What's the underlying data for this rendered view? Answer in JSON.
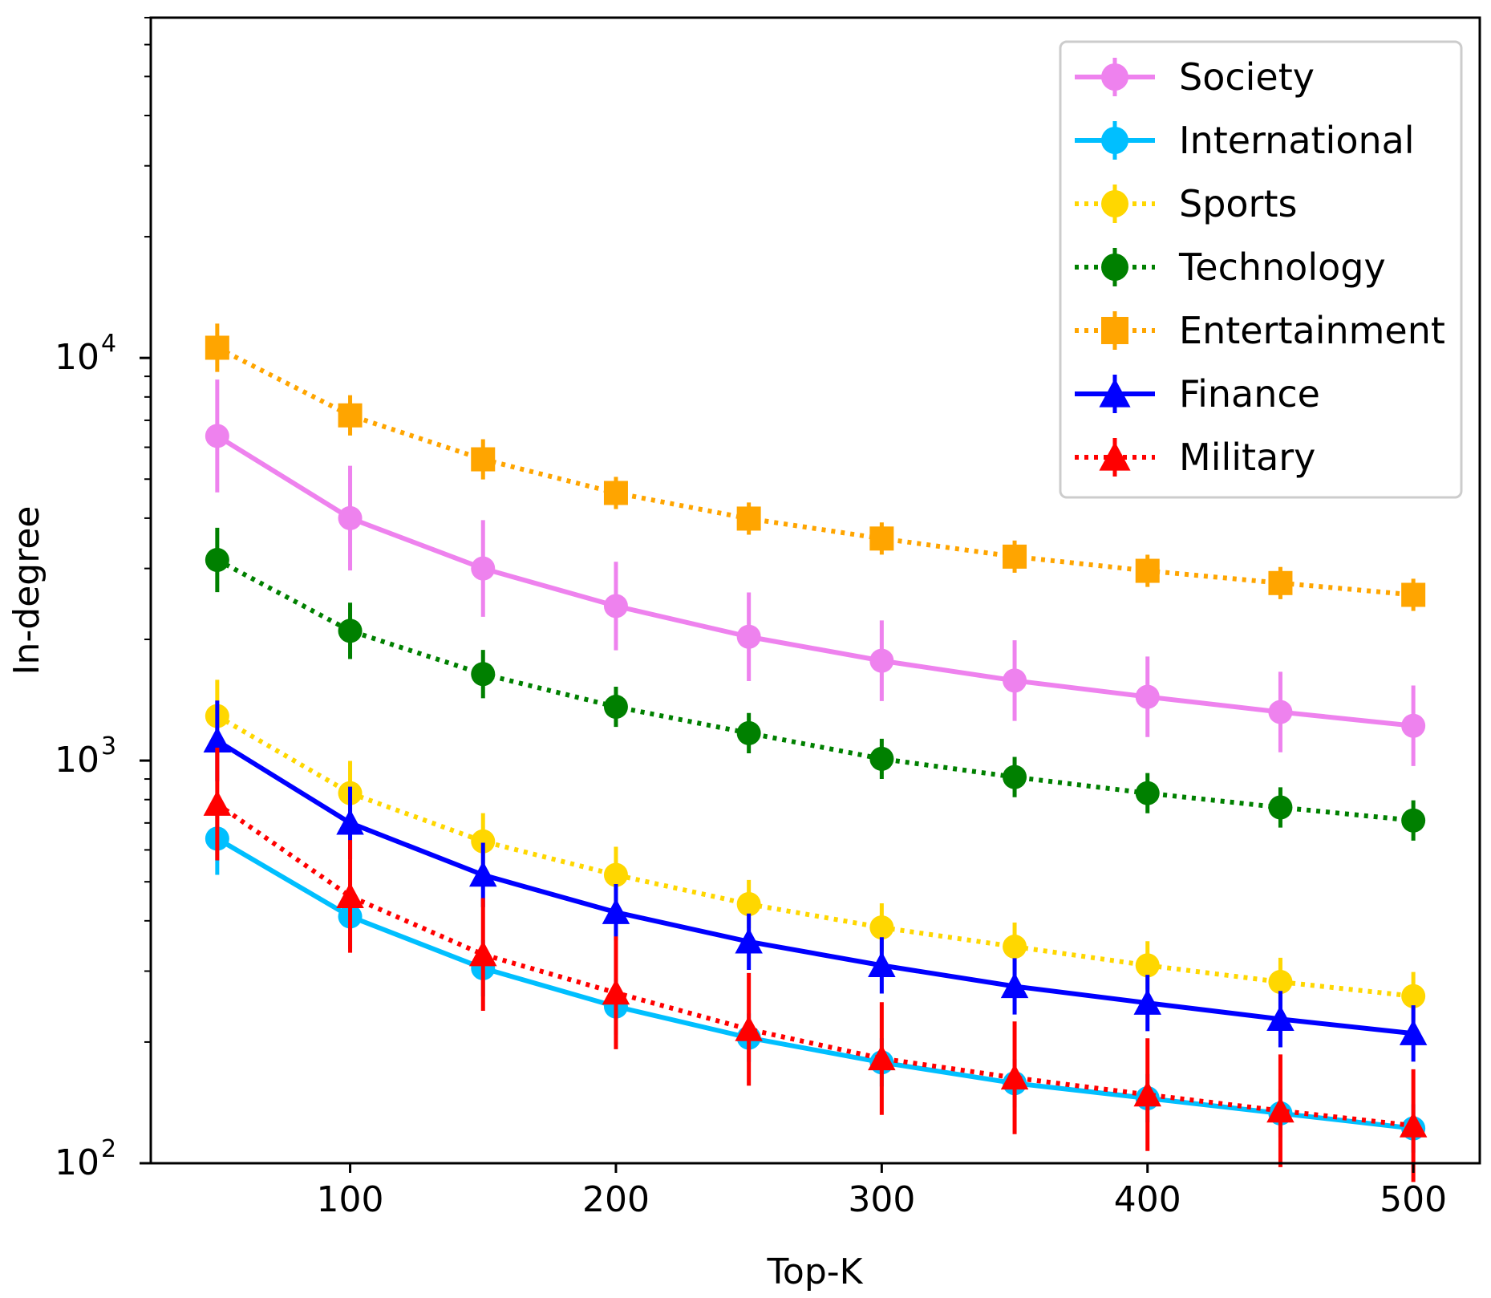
{
  "chart_data": {
    "type": "line",
    "title": "",
    "xlabel": "Top-K",
    "ylabel": "In-degree",
    "yscale": "log",
    "xlim": [
      25,
      525
    ],
    "ylim": [
      100,
      70000
    ],
    "x": [
      50,
      100,
      150,
      200,
      250,
      300,
      350,
      400,
      450,
      500
    ],
    "xticks": [
      100,
      200,
      300,
      400,
      500
    ],
    "xtick_labels": [
      "100",
      "200",
      "300",
      "400",
      "500"
    ],
    "yticks": [
      {
        "value": 100,
        "base": "10",
        "exp": "2"
      },
      {
        "value": 1000,
        "base": "10",
        "exp": "3"
      },
      {
        "value": 10000,
        "base": "10",
        "exp": "4"
      }
    ],
    "legend_position": "top-right",
    "series": [
      {
        "name": "Society",
        "color": "#ee82ee",
        "style": "solid",
        "marker": "circle",
        "values": [
          6400,
          4000,
          3000,
          2420,
          2030,
          1770,
          1580,
          1440,
          1320,
          1220
        ],
        "err": [
          0.14,
          0.13,
          0.12,
          0.11,
          0.11,
          0.1,
          0.1,
          0.1,
          0.1,
          0.1
        ]
      },
      {
        "name": "International",
        "color": "#00bfff",
        "style": "solid",
        "marker": "circle",
        "values": [
          640,
          410,
          305,
          245,
          205,
          178,
          158,
          145,
          133,
          122
        ],
        "err": [
          0.09,
          0.08,
          0.07,
          0.07,
          0.06,
          0.06,
          0.06,
          0.06,
          0.06,
          0.06
        ]
      },
      {
        "name": "Sports",
        "color": "#ffd700",
        "style": "dotted",
        "marker": "circle",
        "values": [
          1290,
          830,
          630,
          520,
          440,
          385,
          345,
          310,
          282,
          260
        ],
        "err": [
          0.09,
          0.08,
          0.07,
          0.07,
          0.06,
          0.06,
          0.06,
          0.06,
          0.06,
          0.06
        ]
      },
      {
        "name": "Technology",
        "color": "#008000",
        "style": "dotted",
        "marker": "circle",
        "values": [
          3150,
          2100,
          1640,
          1360,
          1170,
          1010,
          910,
          830,
          765,
          710
        ],
        "err": [
          0.08,
          0.07,
          0.06,
          0.05,
          0.05,
          0.05,
          0.05,
          0.05,
          0.05,
          0.05
        ]
      },
      {
        "name": "Entertainment",
        "color": "#ffa500",
        "style": "dotted",
        "marker": "square",
        "values": [
          10600,
          7200,
          5600,
          4620,
          3990,
          3560,
          3210,
          2960,
          2760,
          2580
        ],
        "err": [
          0.06,
          0.05,
          0.05,
          0.04,
          0.04,
          0.04,
          0.04,
          0.04,
          0.04,
          0.04
        ]
      },
      {
        "name": "Finance",
        "color": "#0000ff",
        "style": "solid",
        "marker": "triangle",
        "values": [
          1120,
          700,
          520,
          420,
          355,
          310,
          275,
          250,
          228,
          210
        ],
        "err": [
          0.1,
          0.09,
          0.08,
          0.07,
          0.07,
          0.07,
          0.07,
          0.07,
          0.07,
          0.07
        ]
      },
      {
        "name": "Military",
        "color": "#ff0000",
        "style": "dotted",
        "marker": "triangle",
        "values": [
          780,
          460,
          330,
          265,
          215,
          182,
          163,
          148,
          135,
          124
        ],
        "err": [
          0.14,
          0.14,
          0.14,
          0.14,
          0.14,
          0.14,
          0.14,
          0.14,
          0.14,
          0.14
        ]
      }
    ]
  }
}
